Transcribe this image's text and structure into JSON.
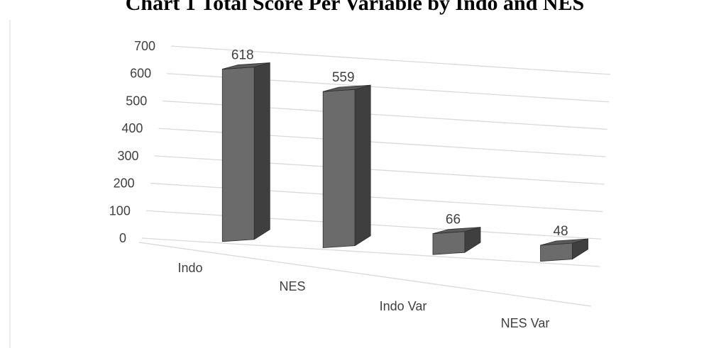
{
  "chart_data": {
    "type": "bar",
    "title": "Chart 1 Total Score Per Variable by Indo and NES",
    "categories": [
      "Indo",
      "NES",
      "Indo Var",
      "NES Var"
    ],
    "series": [
      {
        "values": [
          618,
          559,
          66,
          48
        ]
      }
    ],
    "data_labels": [
      "618",
      "559",
      "66",
      "48"
    ],
    "ylim": [
      0,
      700
    ],
    "yticks": [
      0,
      100,
      200,
      300,
      400,
      500,
      600,
      700
    ],
    "grid": true,
    "legend": "none",
    "style": "3d-column",
    "colors": {
      "bar_front": "#6b6b6b",
      "bar_side": "#3f3f3f",
      "bar_top": "#5a5a5a",
      "grid": "#d9d9d9",
      "text": "#404040",
      "frame": "#d9d9d9",
      "title": "#000000"
    }
  }
}
